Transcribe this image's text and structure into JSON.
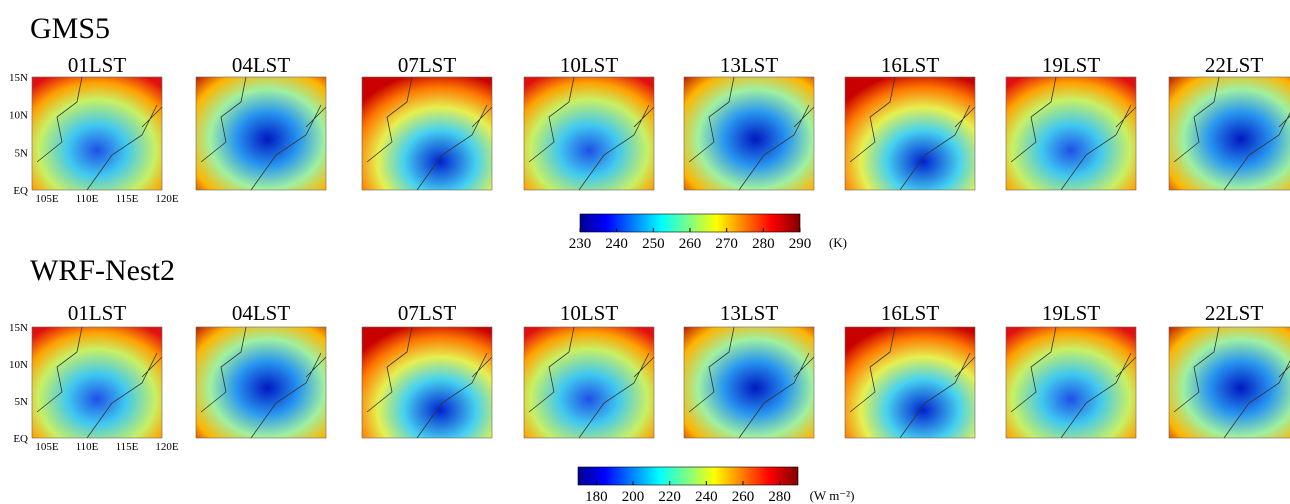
{
  "sections": [
    {
      "title": "GMS5",
      "panels": [
        "01LST",
        "04LST",
        "07LST",
        "10LST",
        "13LST",
        "16LST",
        "19LST",
        "22LST"
      ],
      "y_labels": [
        "15N",
        "10N",
        "5N",
        "EQ"
      ],
      "x_labels": [
        "105E",
        "110E",
        "115E",
        "120E"
      ],
      "colorbar": {
        "ticks": [
          230,
          240,
          250,
          260,
          270,
          280,
          290
        ],
        "unit": "(K)"
      }
    },
    {
      "title": "WRF-Nest2",
      "panels": [
        "01LST",
        "04LST",
        "07LST",
        "10LST",
        "13LST",
        "16LST",
        "19LST",
        "22LST"
      ],
      "y_labels": [
        "15N",
        "10N",
        "5N",
        "EQ"
      ],
      "x_labels": [
        "105E",
        "110E",
        "115E",
        "120E"
      ],
      "colorbar": {
        "ticks": [
          180,
          200,
          220,
          240,
          260,
          280
        ],
        "unit": "(W m⁻²)"
      }
    }
  ]
}
